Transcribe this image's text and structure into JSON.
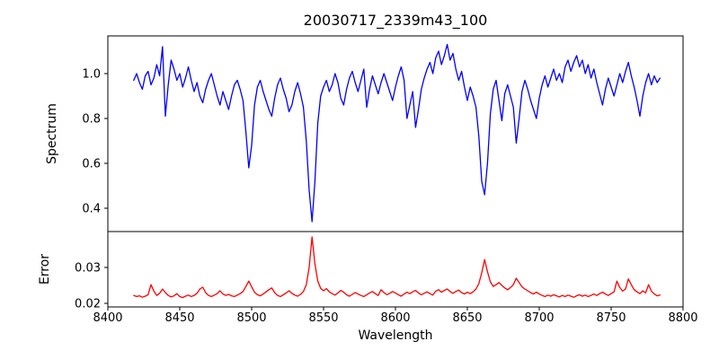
{
  "colors": {
    "background": "#ffffff",
    "axis": "#000000",
    "text": "#000000",
    "spectrum_line": "#0000ff",
    "error_line": "#ff0000"
  },
  "chart_data": {
    "type": "line",
    "title": "20030717_2339m43_100",
    "xlabel": "Wavelength",
    "xlim": [
      8400,
      8800
    ],
    "xticks": [
      8400,
      8450,
      8500,
      8550,
      8600,
      8650,
      8700,
      8750,
      8800
    ],
    "xtick_labels": [
      "8400",
      "8450",
      "8500",
      "8550",
      "8600",
      "8650",
      "8700",
      "8750",
      "8800"
    ],
    "grid": false,
    "legend": "none",
    "x": [
      8418,
      8420,
      8422,
      8424,
      8426,
      8428,
      8430,
      8432,
      8434,
      8436,
      8438,
      8440,
      8442,
      8444,
      8446,
      8448,
      8450,
      8452,
      8454,
      8456,
      8458,
      8460,
      8462,
      8464,
      8466,
      8468,
      8470,
      8472,
      8474,
      8476,
      8478,
      8480,
      8482,
      8484,
      8486,
      8488,
      8490,
      8492,
      8494,
      8496,
      8498,
      8500,
      8502,
      8504,
      8506,
      8508,
      8510,
      8512,
      8514,
      8516,
      8518,
      8520,
      8522,
      8524,
      8526,
      8528,
      8530,
      8532,
      8534,
      8536,
      8538,
      8540,
      8542,
      8544,
      8546,
      8548,
      8550,
      8552,
      8554,
      8556,
      8558,
      8560,
      8562,
      8564,
      8566,
      8568,
      8570,
      8572,
      8574,
      8576,
      8578,
      8580,
      8582,
      8584,
      8586,
      8588,
      8590,
      8592,
      8594,
      8596,
      8598,
      8600,
      8602,
      8604,
      8606,
      8608,
      8610,
      8612,
      8614,
      8616,
      8618,
      8620,
      8622,
      8624,
      8626,
      8628,
      8630,
      8632,
      8634,
      8636,
      8638,
      8640,
      8642,
      8644,
      8646,
      8648,
      8650,
      8652,
      8654,
      8656,
      8658,
      8660,
      8662,
      8664,
      8666,
      8668,
      8670,
      8672,
      8674,
      8676,
      8678,
      8680,
      8682,
      8684,
      8686,
      8688,
      8690,
      8692,
      8694,
      8696,
      8698,
      8700,
      8702,
      8704,
      8706,
      8708,
      8710,
      8712,
      8714,
      8716,
      8718,
      8720,
      8722,
      8724,
      8726,
      8728,
      8730,
      8732,
      8734,
      8736,
      8738,
      8740,
      8742,
      8744,
      8746,
      8748,
      8750,
      8752,
      8754,
      8756,
      8758,
      8760,
      8762,
      8764,
      8766,
      8768,
      8770,
      8772,
      8774,
      8776,
      8778,
      8780,
      8782,
      8784
    ],
    "panels": [
      {
        "ylabel": "Spectrum",
        "ylim": [
          0.296,
          1.168
        ],
        "yticks": [
          0.4,
          0.6,
          0.8,
          1.0
        ],
        "ytick_labels": [
          "0.4",
          "0.6",
          "0.8",
          "1.0"
        ],
        "series": [
          {
            "name": "spectrum",
            "color": "#0000ff",
            "values": [
              0.97,
              1.0,
              0.96,
              0.93,
              0.99,
              1.01,
              0.95,
              0.98,
              1.04,
              0.99,
              1.12,
              0.81,
              0.95,
              1.06,
              1.02,
              0.97,
              1.0,
              0.94,
              0.98,
              1.03,
              0.97,
              0.92,
              0.96,
              0.9,
              0.87,
              0.93,
              0.97,
              1.0,
              0.95,
              0.9,
              0.86,
              0.92,
              0.88,
              0.84,
              0.9,
              0.95,
              0.97,
              0.93,
              0.88,
              0.74,
              0.58,
              0.68,
              0.86,
              0.94,
              0.97,
              0.92,
              0.88,
              0.84,
              0.81,
              0.89,
              0.95,
              0.98,
              0.93,
              0.89,
              0.83,
              0.86,
              0.92,
              0.96,
              0.91,
              0.85,
              0.7,
              0.48,
              0.34,
              0.52,
              0.78,
              0.9,
              0.94,
              0.97,
              0.92,
              0.95,
              1.0,
              0.96,
              0.89,
              0.86,
              0.93,
              0.98,
              1.01,
              0.96,
              0.92,
              0.97,
              1.02,
              0.85,
              0.93,
              0.99,
              0.95,
              0.91,
              0.96,
              1.0,
              0.96,
              0.92,
              0.88,
              0.94,
              0.99,
              1.03,
              0.97,
              0.8,
              0.86,
              0.92,
              0.76,
              0.84,
              0.93,
              0.98,
              1.02,
              1.05,
              1.0,
              1.07,
              1.1,
              1.04,
              1.08,
              1.13,
              1.06,
              1.09,
              1.02,
              0.97,
              1.01,
              0.94,
              0.88,
              0.94,
              0.9,
              0.85,
              0.72,
              0.52,
              0.46,
              0.6,
              0.82,
              0.93,
              0.97,
              0.88,
              0.79,
              0.91,
              0.95,
              0.9,
              0.85,
              0.69,
              0.8,
              0.92,
              0.97,
              0.93,
              0.88,
              0.84,
              0.8,
              0.89,
              0.95,
              0.99,
              0.94,
              0.98,
              1.02,
              0.97,
              1.0,
              0.96,
              1.03,
              1.06,
              1.01,
              1.05,
              1.08,
              1.03,
              1.06,
              1.0,
              1.04,
              0.98,
              1.02,
              0.96,
              0.91,
              0.86,
              0.93,
              0.98,
              0.94,
              0.9,
              0.95,
              1.0,
              0.96,
              1.01,
              1.05,
              0.99,
              0.94,
              0.88,
              0.81,
              0.9,
              0.96,
              1.0,
              0.95,
              0.99,
              0.96,
              0.98
            ]
          }
        ]
      },
      {
        "ylabel": "Error",
        "ylim": [
          0.019,
          0.04
        ],
        "yticks": [
          0.02,
          0.03
        ],
        "ytick_labels": [
          "0.02",
          "0.03"
        ],
        "series": [
          {
            "name": "error",
            "color": "#ff0000",
            "values": [
              0.0222,
              0.0219,
              0.0221,
              0.0217,
              0.022,
              0.0224,
              0.0252,
              0.0234,
              0.0222,
              0.0228,
              0.024,
              0.023,
              0.0222,
              0.0218,
              0.0221,
              0.0227,
              0.0219,
              0.0216,
              0.022,
              0.0223,
              0.0219,
              0.0222,
              0.0228,
              0.024,
              0.0245,
              0.023,
              0.0222,
              0.0219,
              0.0223,
              0.0227,
              0.0235,
              0.0226,
              0.0222,
              0.0225,
              0.0221,
              0.0219,
              0.0223,
              0.0227,
              0.0233,
              0.0247,
              0.0262,
              0.0246,
              0.0231,
              0.0224,
              0.0221,
              0.0226,
              0.0232,
              0.0238,
              0.0243,
              0.023,
              0.0222,
              0.0219,
              0.0224,
              0.0229,
              0.0235,
              0.0228,
              0.0223,
              0.022,
              0.0225,
              0.0233,
              0.0252,
              0.03,
              0.0385,
              0.031,
              0.0262,
              0.0242,
              0.0235,
              0.0241,
              0.0232,
              0.0227,
              0.0223,
              0.0229,
              0.0236,
              0.0231,
              0.0224,
              0.022,
              0.0225,
              0.023,
              0.0226,
              0.0222,
              0.0219,
              0.0224,
              0.0229,
              0.0233,
              0.0227,
              0.0222,
              0.0238,
              0.023,
              0.0224,
              0.0228,
              0.0233,
              0.0229,
              0.0224,
              0.022,
              0.0226,
              0.0231,
              0.0227,
              0.0232,
              0.0236,
              0.0229,
              0.0224,
              0.0228,
              0.0232,
              0.0227,
              0.0223,
              0.0234,
              0.0238,
              0.0231,
              0.0236,
              0.024,
              0.0233,
              0.0228,
              0.0233,
              0.0237,
              0.023,
              0.0226,
              0.0231,
              0.0227,
              0.0232,
              0.024,
              0.0255,
              0.0285,
              0.0322,
              0.0288,
              0.026,
              0.0247,
              0.0252,
              0.0258,
              0.025,
              0.0243,
              0.0238,
              0.0244,
              0.0252,
              0.027,
              0.0258,
              0.0246,
              0.024,
              0.0235,
              0.023,
              0.0226,
              0.0231,
              0.0226,
              0.0222,
              0.0219,
              0.0223,
              0.022,
              0.0224,
              0.0221,
              0.0218,
              0.0222,
              0.0219,
              0.0223,
              0.022,
              0.0217,
              0.0221,
              0.0224,
              0.022,
              0.0223,
              0.0219,
              0.0222,
              0.0226,
              0.0222,
              0.0227,
              0.0231,
              0.0226,
              0.0222,
              0.0227,
              0.0232,
              0.0262,
              0.0244,
              0.0234,
              0.024,
              0.0268,
              0.0252,
              0.0238,
              0.0232,
              0.0227,
              0.0235,
              0.0229,
              0.0252,
              0.0234,
              0.0226,
              0.0221,
              0.0223
            ]
          }
        ]
      }
    ]
  }
}
